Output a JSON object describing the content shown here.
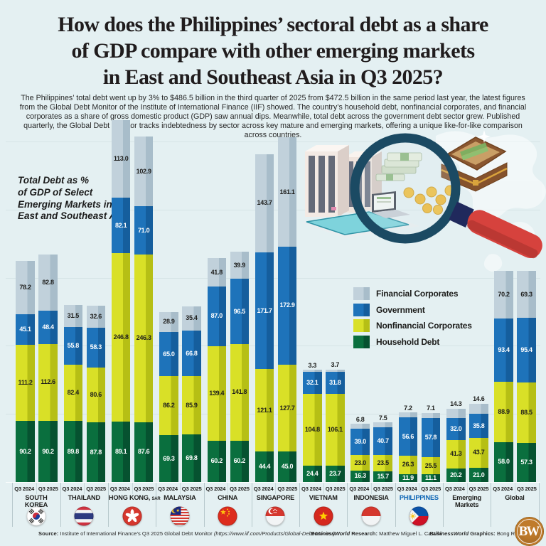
{
  "header": {
    "title_lines": [
      "How does the Philippines’ sectoral debt as a share",
      "of GDP compare with other emerging markets",
      "in East and Southeast Asia in Q3 2025?"
    ],
    "intro": "The Philippines’ total debt went up by 3% to $486.5 billion in the third quarter of 2025 from $472.5 billion in the same period last year, the latest figures from the Global Debt Monitor of the Institute of International Finance (IIF) showed. The country’s household debt, nonfinancial corporates, and financial corporates as a share of gross domestic product (GDP) saw annual dips. Meanwhile, total debt across the government debt sector grew. Published quarterly, the Global Debt Monitor tracks indebtedness by sector across key mature and emerging markets, offering a unique like-for-like comparison across countries."
  },
  "chart_note_lines": [
    "Total Debt as %",
    "of GDP of Select",
    "Emerging Markets in",
    "East and Southeast Asia"
  ],
  "chart_data": {
    "type": "bar",
    "stacked": true,
    "title": "Total Debt as % of GDP of Select Emerging Markets in East and Southeast Asia",
    "unit": "% of GDP",
    "periods": [
      "Q3 2024",
      "Q3 2025"
    ],
    "legend_order": [
      "financial",
      "government",
      "nonfinancial",
      "household"
    ],
    "values_order": [
      "household",
      "nonfinancial",
      "government",
      "financial"
    ],
    "series_meta": {
      "household": {
        "label": "Household Debt",
        "color": "#0a6f3e",
        "color_dark": "#065230",
        "text_color": "#ffffff"
      },
      "nonfinancial": {
        "label": "Nonfinancial Corporates",
        "color": "#d9e027",
        "color_dark": "#b6bf15",
        "text_color": "#1d1d1b"
      },
      "government": {
        "label": "Government",
        "color": "#1e73ba",
        "color_dark": "#155e9d",
        "text_color": "#ffffff"
      },
      "financial": {
        "label": "Financial Corporates",
        "color": "#c1d1db",
        "color_dark": "#a8bdca",
        "text_color": "#1d1d1b"
      }
    },
    "highlight_color": "#0a63b4",
    "categories": [
      {
        "name": "SOUTH KOREA",
        "flag": "south-korea",
        "q3_2024": [
          90.2,
          111.2,
          45.1,
          78.2
        ],
        "q3_2025": [
          90.2,
          112.6,
          48.4,
          82.8
        ]
      },
      {
        "name": "THAILAND",
        "flag": "thailand",
        "q3_2024": [
          89.8,
          82.4,
          55.8,
          31.5
        ],
        "q3_2025": [
          87.8,
          80.6,
          58.3,
          32.6
        ]
      },
      {
        "name": "HONG KONG,",
        "suffix": "SAR",
        "flag": "hong-kong",
        "q3_2024": [
          89.1,
          246.8,
          82.1,
          113.0
        ],
        "q3_2025": [
          87.6,
          246.3,
          71.0,
          102.9
        ]
      },
      {
        "name": "MALAYSIA",
        "flag": "malaysia",
        "q3_2024": [
          69.3,
          86.2,
          65.0,
          28.9
        ],
        "q3_2025": [
          69.8,
          85.9,
          66.8,
          35.4
        ]
      },
      {
        "name": "CHINA",
        "flag": "china",
        "q3_2024": [
          60.2,
          139.4,
          87.0,
          41.8
        ],
        "q3_2025": [
          60.2,
          141.8,
          96.5,
          39.9
        ]
      },
      {
        "name": "SINGAPORE",
        "flag": "singapore",
        "q3_2024": [
          44.4,
          121.1,
          171.7,
          143.7
        ],
        "q3_2025": [
          45.0,
          127.7,
          172.9,
          161.1
        ]
      },
      {
        "name": "VIETNAM",
        "flag": "vietnam",
        "q3_2024": [
          24.4,
          104.8,
          32.1,
          3.3
        ],
        "q3_2025": [
          23.7,
          106.1,
          31.8,
          3.7
        ]
      },
      {
        "name": "INDONESIA",
        "flag": "indonesia",
        "q3_2024": [
          16.3,
          23.0,
          39.0,
          6.8
        ],
        "q3_2025": [
          15.7,
          23.5,
          40.7,
          7.5
        ]
      },
      {
        "name": "PHILIPPINES",
        "flag": "philippines",
        "highlight": true,
        "q3_2024": [
          11.9,
          26.3,
          56.6,
          7.2
        ],
        "q3_2025": [
          11.1,
          25.5,
          57.8,
          7.1
        ]
      },
      {
        "name": "Emerging Markets",
        "flag": null,
        "q3_2024": [
          20.2,
          41.3,
          32.0,
          14.3
        ],
        "q3_2025": [
          21.0,
          43.7,
          35.8,
          14.6
        ]
      },
      {
        "name": "Global",
        "flag": null,
        "q3_2024": [
          58.0,
          88.9,
          93.4,
          70.2
        ],
        "q3_2025": [
          57.3,
          88.5,
          95.4,
          69.3
        ]
      }
    ]
  },
  "footer": {
    "source_label": "Source:",
    "source_text": " Institute of International Finance’s Q3 2025 Global Debt Monitor ",
    "source_url": "(https://www.iif.com/Products/Global-Debt-Monitor)",
    "research_brand": "BusinessWorld",
    "research_label": " Research:",
    "research_name": " Matthew Miguel L. Castillo",
    "graphics_brand": "BusinessWorld",
    "graphics_label": " Graphics:",
    "graphics_name": " Bong R. Fortin",
    "logo_text": "BW"
  }
}
